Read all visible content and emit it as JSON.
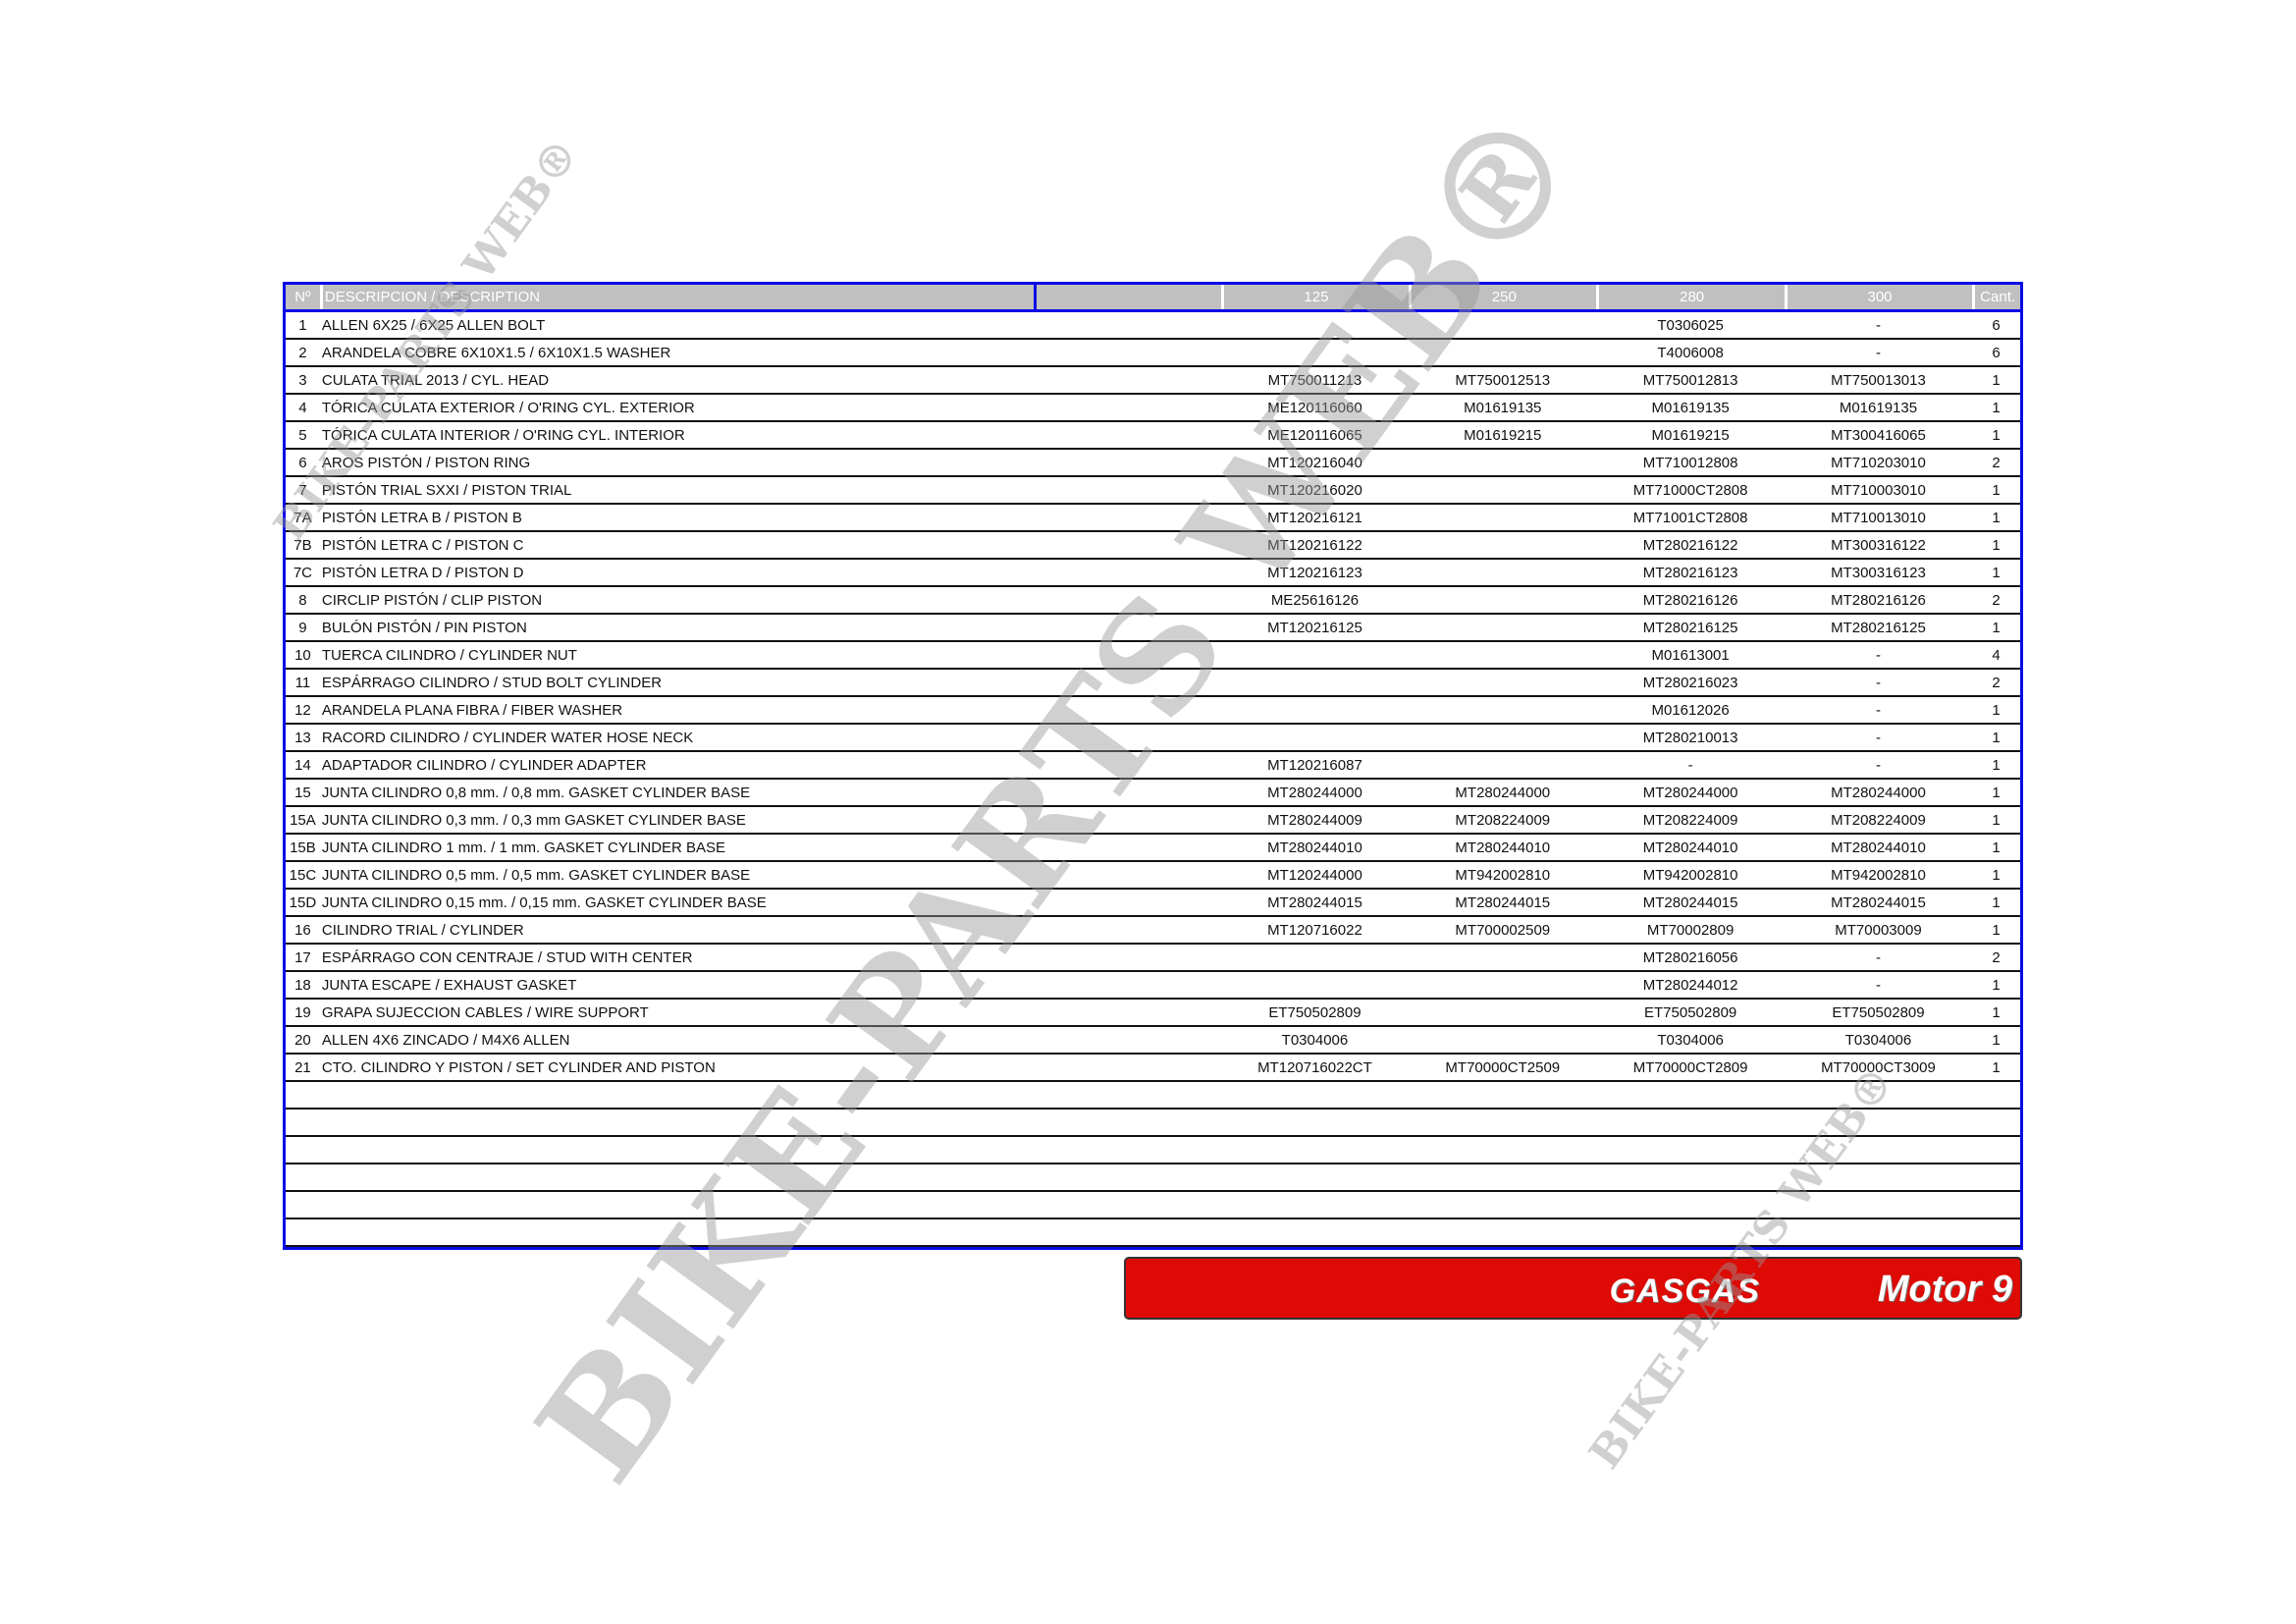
{
  "table": {
    "headers": {
      "no": "Nº",
      "desc": "DESCRIPCION / DESCRIPTION",
      "blank": "",
      "m125": "125",
      "m250": "250",
      "m280": "280",
      "m300": "300",
      "qty": "Cant."
    },
    "rows": [
      {
        "no": "1",
        "desc": "ALLEN 6X25 / 6X25 ALLEN BOLT",
        "m125": "",
        "m250": "",
        "m280": "T0306025",
        "m300": "-",
        "qty": "6"
      },
      {
        "no": "2",
        "desc": "ARANDELA COBRE 6X10X1.5 / 6X10X1.5 WASHER",
        "m125": "",
        "m250": "",
        "m280": "T4006008",
        "m300": "-",
        "qty": "6"
      },
      {
        "no": "3",
        "desc": "CULATA TRIAL 2013 / CYL. HEAD",
        "m125": "MT750011213",
        "m250": "MT750012513",
        "m280": "MT750012813",
        "m300": "MT750013013",
        "qty": "1"
      },
      {
        "no": "4",
        "desc": "TÓRICA CULATA EXTERIOR / O'RING CYL. EXTERIOR",
        "m125": "ME120116060",
        "m250": "M01619135",
        "m280": "M01619135",
        "m300": "M01619135",
        "qty": "1"
      },
      {
        "no": "5",
        "desc": "TÓRICA CULATA INTERIOR / O'RING CYL. INTERIOR",
        "m125": "ME120116065",
        "m250": "M01619215",
        "m280": "M01619215",
        "m300": "MT300416065",
        "qty": "1"
      },
      {
        "no": "6",
        "desc": "AROS PISTÓN / PISTON RING",
        "m125": "MT120216040",
        "m250": "",
        "m280": "MT710012808",
        "m300": "MT710203010",
        "qty": "2"
      },
      {
        "no": "7",
        "desc": "PISTÓN TRIAL SXXI / PISTON TRIAL",
        "m125": "MT120216020",
        "m250": "",
        "m280": "MT71000CT2808",
        "m300": "MT710003010",
        "qty": "1"
      },
      {
        "no": "7A",
        "desc": "PISTÓN LETRA B / PISTON B",
        "m125": "MT120216121",
        "m250": "",
        "m280": "MT71001CT2808",
        "m300": "MT710013010",
        "qty": "1"
      },
      {
        "no": "7B",
        "desc": "PISTÓN LETRA C / PISTON C",
        "m125": "MT120216122",
        "m250": "",
        "m280": "MT280216122",
        "m300": "MT300316122",
        "qty": "1"
      },
      {
        "no": "7C",
        "desc": "PISTÓN LETRA D / PISTON D",
        "m125": "MT120216123",
        "m250": "",
        "m280": "MT280216123",
        "m300": "MT300316123",
        "qty": "1"
      },
      {
        "no": "8",
        "desc": "CIRCLIP PISTÓN / CLIP PISTON",
        "m125": "ME25616126",
        "m250": "",
        "m280": "MT280216126",
        "m300": "MT280216126",
        "qty": "2"
      },
      {
        "no": "9",
        "desc": "BULÓN PISTÓN / PIN PISTON",
        "m125": "MT120216125",
        "m250": "",
        "m280": "MT280216125",
        "m300": "MT280216125",
        "qty": "1"
      },
      {
        "no": "10",
        "desc": "TUERCA CILINDRO / CYLINDER NUT",
        "m125": "",
        "m250": "",
        "m280": "M01613001",
        "m300": "-",
        "qty": "4"
      },
      {
        "no": "11",
        "desc": "ESPÁRRAGO CILINDRO / STUD BOLT CYLINDER",
        "m125": "",
        "m250": "",
        "m280": "MT280216023",
        "m300": "-",
        "qty": "2"
      },
      {
        "no": "12",
        "desc": "ARANDELA PLANA FIBRA / FIBER WASHER",
        "m125": "",
        "m250": "",
        "m280": "M01612026",
        "m300": "-",
        "qty": "1"
      },
      {
        "no": "13",
        "desc": "RACORD CILINDRO / CYLINDER WATER HOSE NECK",
        "m125": "",
        "m250": "",
        "m280": "MT280210013",
        "m300": "-",
        "qty": "1"
      },
      {
        "no": "14",
        "desc": "ADAPTADOR CILINDRO / CYLINDER ADAPTER",
        "m125": "MT120216087",
        "m250": "",
        "m280": "-",
        "m300": "-",
        "qty": "1"
      },
      {
        "no": "15",
        "desc": "JUNTA CILINDRO 0,8 mm. / 0,8 mm. GASKET CYLINDER BASE",
        "m125": "MT280244000",
        "m250": "MT280244000",
        "m280": "MT280244000",
        "m300": "MT280244000",
        "qty": "1"
      },
      {
        "no": "15A",
        "desc": "JUNTA CILINDRO 0,3 mm. / 0,3 mm GASKET CYLINDER BASE",
        "m125": "MT280244009",
        "m250": "MT208224009",
        "m280": "MT208224009",
        "m300": "MT208224009",
        "qty": "1"
      },
      {
        "no": "15B",
        "desc": "JUNTA CILINDRO 1 mm. / 1 mm. GASKET CYLINDER BASE",
        "m125": "MT280244010",
        "m250": "MT280244010",
        "m280": "MT280244010",
        "m300": "MT280244010",
        "qty": "1"
      },
      {
        "no": "15C",
        "desc": "JUNTA CILINDRO 0,5 mm. / 0,5 mm. GASKET CYLINDER BASE",
        "m125": "MT120244000",
        "m250": "MT942002810",
        "m280": "MT942002810",
        "m300": "MT942002810",
        "qty": "1"
      },
      {
        "no": "15D",
        "desc": "JUNTA CILINDRO 0,15 mm. / 0,15 mm. GASKET CYLINDER BASE",
        "m125": "MT280244015",
        "m250": "MT280244015",
        "m280": "MT280244015",
        "m300": "MT280244015",
        "qty": "1"
      },
      {
        "no": "16",
        "desc": "CILINDRO TRIAL / CYLINDER",
        "m125": "MT120716022",
        "m250": "MT700002509",
        "m280": "MT70002809",
        "m300": "MT70003009",
        "qty": "1"
      },
      {
        "no": "17",
        "desc": "ESPÁRRAGO CON CENTRAJE / STUD WITH CENTER",
        "m125": "",
        "m250": "",
        "m280": "MT280216056",
        "m300": "-",
        "qty": "2"
      },
      {
        "no": "18",
        "desc": "JUNTA ESCAPE / EXHAUST GASKET",
        "m125": "",
        "m250": "",
        "m280": "MT280244012",
        "m300": "-",
        "qty": "1"
      },
      {
        "no": "19",
        "desc": "GRAPA SUJECCION CABLES / WIRE SUPPORT",
        "m125": "ET750502809",
        "m250": "",
        "m280": "ET750502809",
        "m300": "ET750502809",
        "qty": "1"
      },
      {
        "no": "20",
        "desc": "ALLEN 4X6 ZINCADO / M4X6 ALLEN",
        "m125": "T0304006",
        "m250": "",
        "m280": "T0304006",
        "m300": "T0304006",
        "qty": "1"
      },
      {
        "no": "21",
        "desc": "CTO. CILINDRO Y PISTON / SET CYLINDER AND PISTON",
        "m125": "MT120716022CT",
        "m250": "MT70000CT2509",
        "m280": "MT70000CT2809",
        "m300": "MT70000CT3009",
        "qty": "1"
      },
      {
        "no": "",
        "desc": "",
        "m125": "",
        "m250": "",
        "m280": "",
        "m300": "",
        "qty": ""
      },
      {
        "no": "",
        "desc": "",
        "m125": "",
        "m250": "",
        "m280": "",
        "m300": "",
        "qty": ""
      },
      {
        "no": "",
        "desc": "",
        "m125": "",
        "m250": "",
        "m280": "",
        "m300": "",
        "qty": ""
      },
      {
        "no": "",
        "desc": "",
        "m125": "",
        "m250": "",
        "m280": "",
        "m300": "",
        "qty": ""
      },
      {
        "no": "",
        "desc": "",
        "m125": "",
        "m250": "",
        "m280": "",
        "m300": "",
        "qty": ""
      },
      {
        "no": "",
        "desc": "",
        "m125": "",
        "m250": "",
        "m280": "",
        "m300": "",
        "qty": ""
      }
    ]
  },
  "banner": {
    "brand": "GASGAS",
    "model": "Motor 9",
    "color": "#dd0a05"
  },
  "watermark": {
    "large": "BIKE-PARTS WEB®",
    "small": "BIKE-PARTS WEB®"
  },
  "colors": {
    "border": "#0a0ae6",
    "header_bg": "#c0c0c0"
  }
}
